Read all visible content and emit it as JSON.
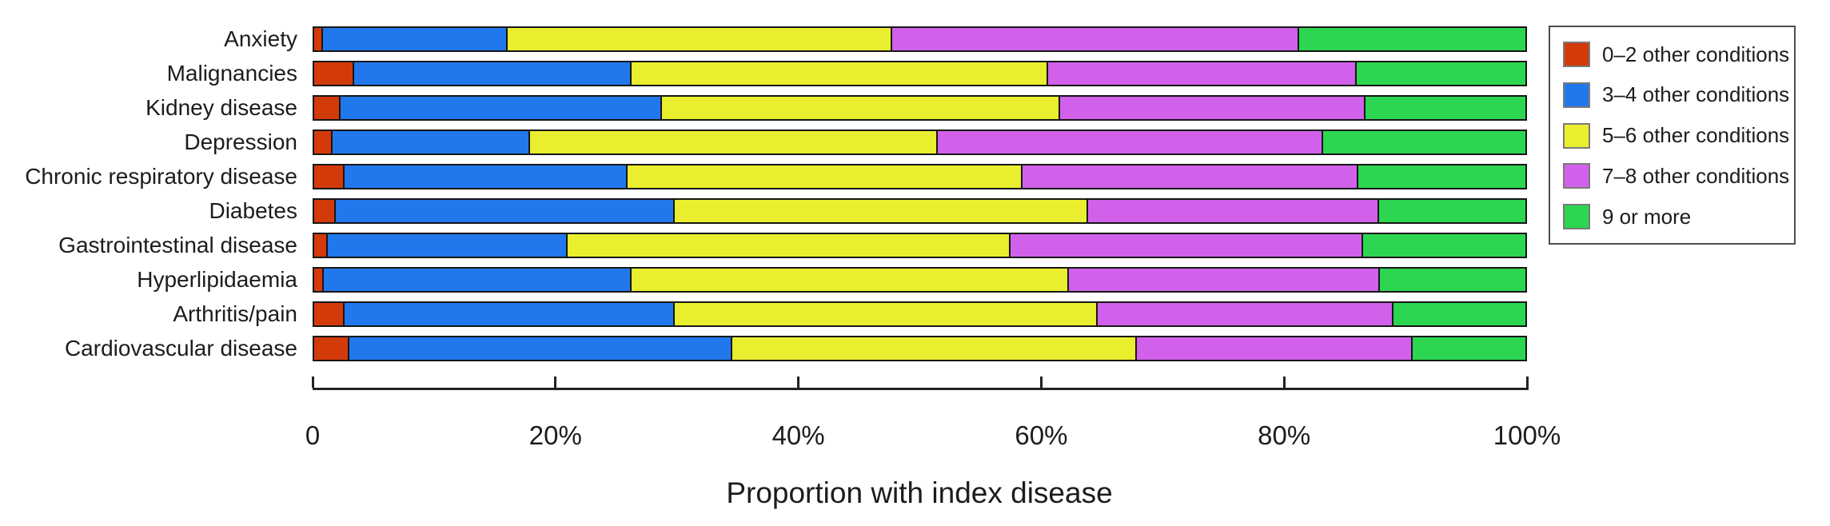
{
  "chart_data": {
    "type": "bar",
    "orientation": "horizontal",
    "stacked": true,
    "title": "",
    "xlabel": "Proportion with index disease",
    "ylabel": "",
    "xlim": [
      0,
      100
    ],
    "grid": false,
    "legend_position": "top-right-outside",
    "x_ticks": [
      {
        "label": "0",
        "value": 0
      },
      {
        "label": "20%",
        "value": 20
      },
      {
        "label": "40%",
        "value": 40
      },
      {
        "label": "60%",
        "value": 60
      },
      {
        "label": "80%",
        "value": 80
      },
      {
        "label": "100%",
        "value": 100
      }
    ],
    "categories": [
      "Anxiety",
      "Malignancies",
      "Kidney disease",
      "Depression",
      "Chronic respiratory disease",
      "Diabetes",
      "Gastrointestinal disease",
      "Hyperlipidaemia",
      "Arthritis/pain",
      "Cardiovascular disease"
    ],
    "series": [
      {
        "name": "0–2 other conditions",
        "key": "0-2",
        "color": "#d33a0a",
        "values": [
          0.7,
          3.3,
          2.2,
          1.5,
          2.5,
          1.8,
          1.1,
          0.8,
          2.5,
          2.9
        ]
      },
      {
        "name": "3–4 other conditions",
        "key": "3-4",
        "color": "#2178ec",
        "values": [
          15.3,
          22.9,
          26.5,
          16.3,
          23.4,
          28.0,
          19.8,
          25.4,
          27.3,
          31.6
        ]
      },
      {
        "name": "5–6  other conditions",
        "key": "5-6",
        "color": "#e9ee2e",
        "values": [
          31.7,
          34.4,
          32.9,
          33.7,
          32.6,
          34.1,
          36.6,
          36.1,
          34.9,
          33.4
        ]
      },
      {
        "name": "7–8  other conditions",
        "key": "7-8",
        "color": "#d160ea",
        "values": [
          33.6,
          25.5,
          25.2,
          31.8,
          27.7,
          24.0,
          29.1,
          25.7,
          24.4,
          22.8
        ]
      },
      {
        "name": "9  or more",
        "key": "9-plus",
        "color": "#2cd650",
        "values": [
          18.7,
          13.9,
          13.2,
          16.7,
          13.8,
          12.1,
          13.4,
          12.0,
          10.9,
          9.3
        ]
      }
    ]
  }
}
